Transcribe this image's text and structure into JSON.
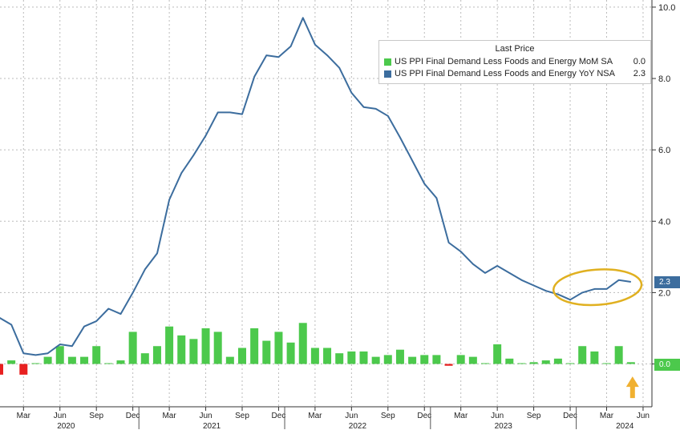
{
  "chart_data": {
    "type": "bar+line",
    "y_axis": {
      "position": "right",
      "range": [
        -1.2,
        10.2
      ],
      "ticks": [
        "10.0",
        "8.0",
        "6.0",
        "4.0",
        "2.0",
        "0.0"
      ],
      "tick_values": [
        10,
        8,
        6,
        4,
        2,
        0
      ]
    },
    "x_axis": {
      "month_labels": [
        "Mar",
        "Jun",
        "Sep",
        "Dec",
        "Mar",
        "Jun",
        "Sep",
        "Dec",
        "Mar",
        "Jun",
        "Sep",
        "Dec",
        "Mar",
        "Jun",
        "Sep",
        "Dec",
        "Mar",
        "Jun"
      ],
      "year_labels": [
        "2020",
        "2021",
        "2022",
        "2023",
        "2024"
      ]
    },
    "grid": true,
    "legend": {
      "placement": "top-right",
      "title": "Last Price",
      "entries": [
        {
          "label": "US PPI Final Demand Less Foods and Energy MoM SA",
          "value": "0.0",
          "color": "#4cc94c"
        },
        {
          "label": "US PPI Final Demand Less Foods and Energy YoY NSA",
          "value": "2.3",
          "color": "#3c6d9e"
        }
      ]
    },
    "series": [
      {
        "name": "US PPI Final Demand Less Foods and Energy YoY NSA",
        "kind": "line",
        "color": "#3c6d9e",
        "last_label": "2.3",
        "values": [
          1.3,
          1.1,
          0.3,
          0.25,
          0.3,
          0.55,
          0.5,
          1.05,
          1.2,
          1.55,
          1.4,
          2.0,
          2.65,
          3.1,
          4.6,
          5.35,
          5.85,
          6.4,
          7.05,
          7.05,
          7.0,
          8.05,
          8.65,
          8.6,
          8.9,
          9.7,
          8.95,
          8.65,
          8.3,
          7.6,
          7.2,
          7.15,
          6.95,
          6.35,
          5.7,
          5.05,
          4.65,
          3.4,
          3.15,
          2.8,
          2.55,
          2.75,
          2.55,
          2.35,
          2.2,
          2.05,
          1.95,
          1.8,
          2.0,
          2.1,
          2.1,
          2.35,
          2.3
        ]
      },
      {
        "name": "US PPI Final Demand Less Foods and Energy MoM SA",
        "kind": "bar",
        "color": "#4cc94c",
        "negative_color": "#e82020",
        "last_label": "0.0",
        "values": [
          -0.3,
          0.1,
          -0.3,
          0.0,
          0.2,
          0.5,
          0.2,
          0.2,
          0.5,
          0.0,
          0.1,
          0.9,
          0.3,
          0.5,
          1.05,
          0.8,
          0.7,
          1.0,
          0.9,
          0.2,
          0.45,
          1.0,
          0.65,
          0.9,
          0.6,
          1.15,
          0.45,
          0.45,
          0.3,
          0.35,
          0.35,
          0.2,
          0.25,
          0.4,
          0.2,
          0.25,
          0.25,
          -0.05,
          0.25,
          0.2,
          0.0,
          0.55,
          0.15,
          0.0,
          0.05,
          0.1,
          0.15,
          0.0,
          0.5,
          0.35,
          0.0,
          0.5,
          0.05
        ]
      }
    ],
    "annotations": [
      {
        "type": "ellipse",
        "color": "#e0b020",
        "around": "recent YoY readings"
      },
      {
        "type": "arrow",
        "color": "#f0b030",
        "direction": "up",
        "points_to": "latest MoM bar"
      }
    ]
  }
}
